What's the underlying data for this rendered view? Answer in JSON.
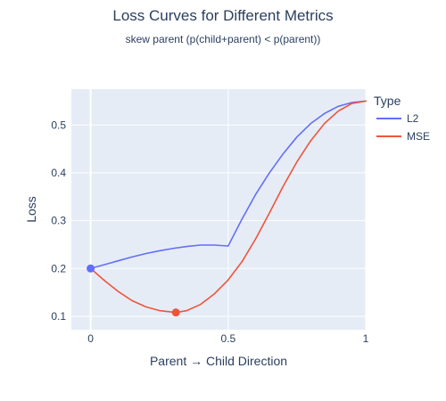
{
  "chart_data": {
    "type": "line",
    "title": "Loss Curves for Different Metrics",
    "subtitle": "skew parent (p(child+parent) < p(parent))",
    "xlabel": "Parent → Child Direction",
    "ylabel": "Loss",
    "xlim": [
      -0.07,
      1.0
    ],
    "ylim": [
      0.072,
      0.575
    ],
    "xticks": [
      0,
      0.5,
      1
    ],
    "xtick_labels": [
      "0",
      "0.5",
      "1"
    ],
    "yticks": [
      0.1,
      0.2,
      0.3,
      0.4,
      0.5
    ],
    "ytick_labels": [
      "0.1",
      "0.2",
      "0.3",
      "0.4",
      "0.5"
    ],
    "grid": true,
    "legend": {
      "title": "Type",
      "position": "top-right outside"
    },
    "series": [
      {
        "name": "L2",
        "color": "#636efa",
        "x": [
          0,
          0.05,
          0.1,
          0.15,
          0.2,
          0.25,
          0.3,
          0.35,
          0.4,
          0.45,
          0.5,
          0.55,
          0.6,
          0.65,
          0.7,
          0.75,
          0.8,
          0.85,
          0.9,
          0.95,
          1.0
        ],
        "y": [
          0.2,
          0.208,
          0.216,
          0.224,
          0.231,
          0.237,
          0.242,
          0.246,
          0.249,
          0.249,
          0.247,
          0.303,
          0.355,
          0.4,
          0.44,
          0.475,
          0.503,
          0.524,
          0.539,
          0.547,
          0.55
        ],
        "marker": {
          "x": 0,
          "y": 0.2
        }
      },
      {
        "name": "MSE",
        "color": "#ef553b",
        "x": [
          0,
          0.05,
          0.1,
          0.15,
          0.2,
          0.25,
          0.31,
          0.35,
          0.4,
          0.45,
          0.5,
          0.55,
          0.6,
          0.65,
          0.7,
          0.75,
          0.8,
          0.85,
          0.9,
          0.95,
          1.0
        ],
        "y": [
          0.2,
          0.175,
          0.152,
          0.133,
          0.12,
          0.112,
          0.108,
          0.112,
          0.125,
          0.147,
          0.176,
          0.214,
          0.262,
          0.316,
          0.372,
          0.423,
          0.467,
          0.503,
          0.529,
          0.545,
          0.55
        ],
        "marker": {
          "x": 0.31,
          "y": 0.108
        }
      }
    ]
  }
}
